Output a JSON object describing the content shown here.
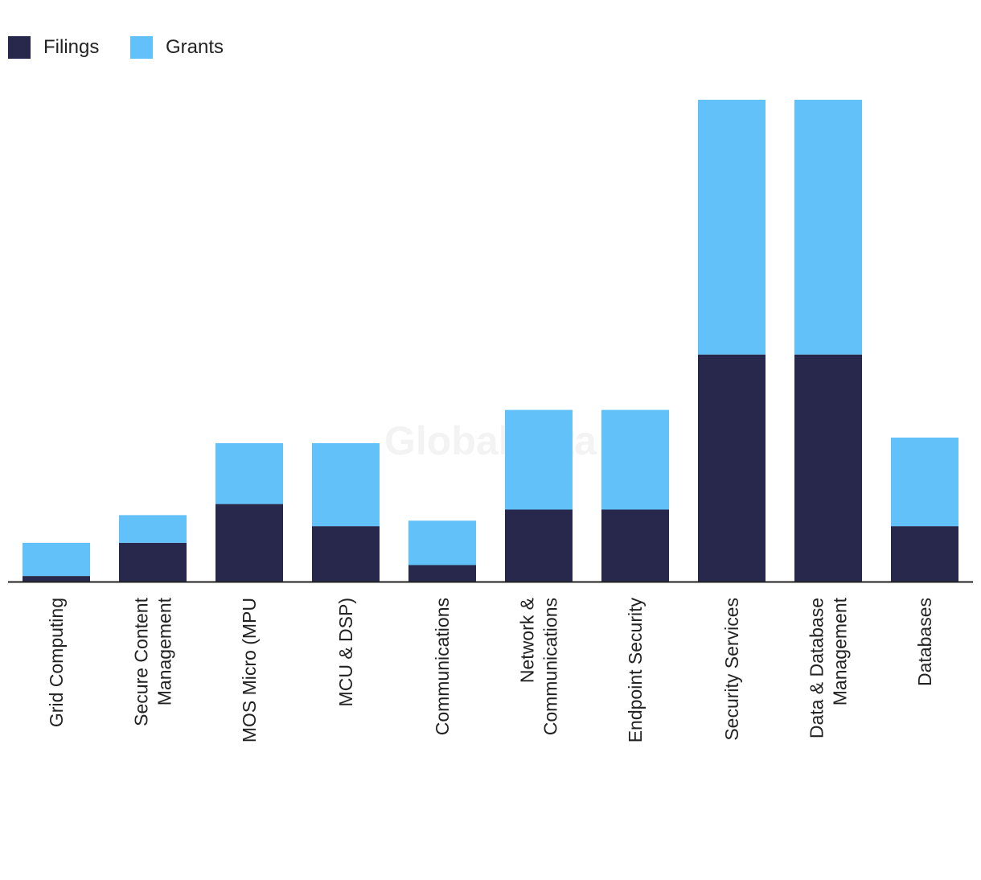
{
  "chart_data": {
    "type": "bar",
    "stacked": true,
    "categories": [
      [
        "Grid Computing"
      ],
      [
        "Secure Content",
        "Management"
      ],
      [
        "MOS Micro (MPU"
      ],
      [
        "MCU & DSP)"
      ],
      [
        "Communications"
      ],
      [
        "Network &",
        "Communications"
      ],
      [
        "Endpoint Security"
      ],
      [
        "Security Services"
      ],
      [
        "Data & Database",
        "Management"
      ],
      [
        "Databases"
      ]
    ],
    "series": [
      {
        "name": "Filings",
        "color": "#27284b",
        "values": [
          1,
          7,
          14,
          10,
          3,
          13,
          13,
          41,
          41,
          10
        ]
      },
      {
        "name": "Grants",
        "color": "#62c1f8",
        "values": [
          6,
          5,
          11,
          15,
          8,
          18,
          18,
          46,
          46,
          16
        ]
      }
    ],
    "ylim": [
      0,
      87
    ],
    "legend_position": "top-left",
    "watermark": "GlobalData",
    "grid": false
  }
}
